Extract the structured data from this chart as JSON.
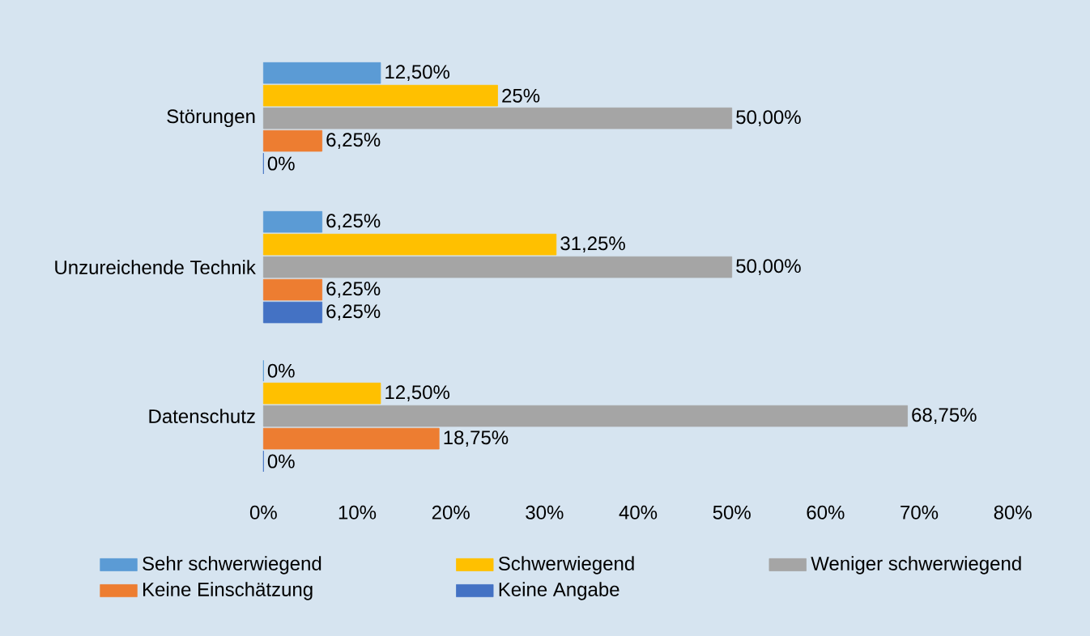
{
  "chart_data": {
    "type": "bar",
    "orientation": "horizontal",
    "categories": [
      "Störungen",
      "Unzureichende Technik",
      "Datenschutz"
    ],
    "series": [
      {
        "name": "Sehr schwerwiegend",
        "color": "#5b9bd5",
        "values": [
          12.5,
          6.25,
          0
        ],
        "value_labels": [
          "12,50%",
          "6,25%",
          "0%"
        ]
      },
      {
        "name": "Schwerwiegend",
        "color": "#ffc000",
        "values": [
          25,
          31.25,
          12.5
        ],
        "value_labels": [
          "25%",
          "31,25%",
          "12,50%"
        ]
      },
      {
        "name": "Weniger schwerwiegend",
        "color": "#a5a5a5",
        "values": [
          50,
          50,
          68.75
        ],
        "value_labels": [
          "50,00%",
          "50,00%",
          "68,75%"
        ]
      },
      {
        "name": "Keine Einschätzung",
        "color": "#ed7d31",
        "values": [
          6.25,
          6.25,
          18.75
        ],
        "value_labels": [
          "6,25%",
          "6,25%",
          "18,75%"
        ]
      },
      {
        "name": "Keine Angabe",
        "color": "#4472c4",
        "values": [
          0,
          6.25,
          0
        ],
        "value_labels": [
          "0%",
          "6,25%",
          "0%"
        ]
      }
    ],
    "xlim": [
      0,
      80
    ],
    "xticks": [
      {
        "value": 0,
        "label": "0%"
      },
      {
        "value": 10,
        "label": "10%"
      },
      {
        "value": 20,
        "label": "20%"
      },
      {
        "value": 30,
        "label": "30%"
      },
      {
        "value": 40,
        "label": "40%"
      },
      {
        "value": 50,
        "label": "50%"
      },
      {
        "value": 60,
        "label": "60%"
      },
      {
        "value": 70,
        "label": "70%"
      },
      {
        "value": 80,
        "label": "80%"
      }
    ],
    "legend": "bottom"
  }
}
